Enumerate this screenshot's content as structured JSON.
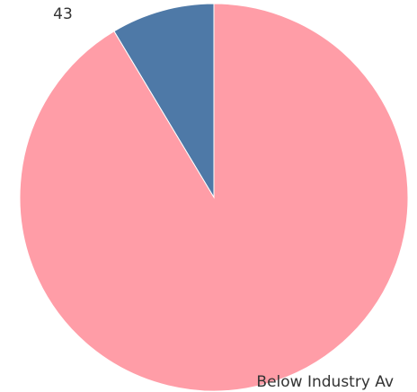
{
  "chart_data": {
    "type": "pie",
    "categories": [
      "",
      "Below Industry Av"
    ],
    "values": [
      43,
      457
    ],
    "colors": [
      "#4e79a7",
      "#ff9da7"
    ],
    "data_labels": [
      "43",
      ""
    ],
    "category_labels": [
      "",
      "Below Industry Av"
    ],
    "legend": "none"
  }
}
